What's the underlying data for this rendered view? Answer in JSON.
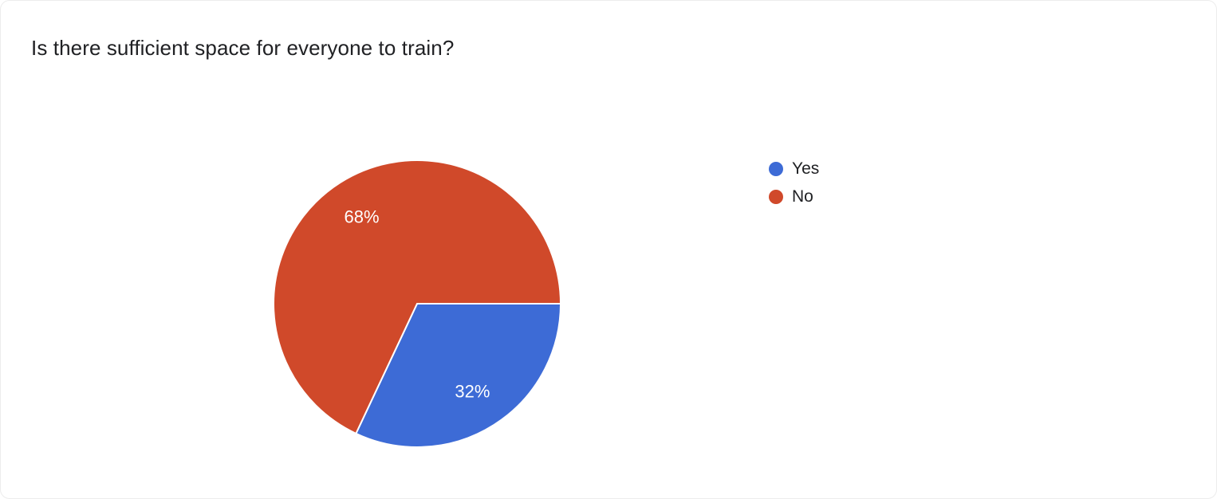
{
  "header": {
    "title": "Is there sufficient space for everyone to train?"
  },
  "chart_data": {
    "type": "pie",
    "title": "Is there sufficient space for everyone to train?",
    "categories": [
      "Yes",
      "No"
    ],
    "values": [
      32,
      68
    ],
    "slice_labels": [
      "32%",
      "68%"
    ],
    "colors": [
      "#3d6bd6",
      "#d0492a"
    ],
    "label_color": "#ffffff",
    "legend_position": "right",
    "start_angle_deg": 0,
    "direction": "clockwise"
  }
}
